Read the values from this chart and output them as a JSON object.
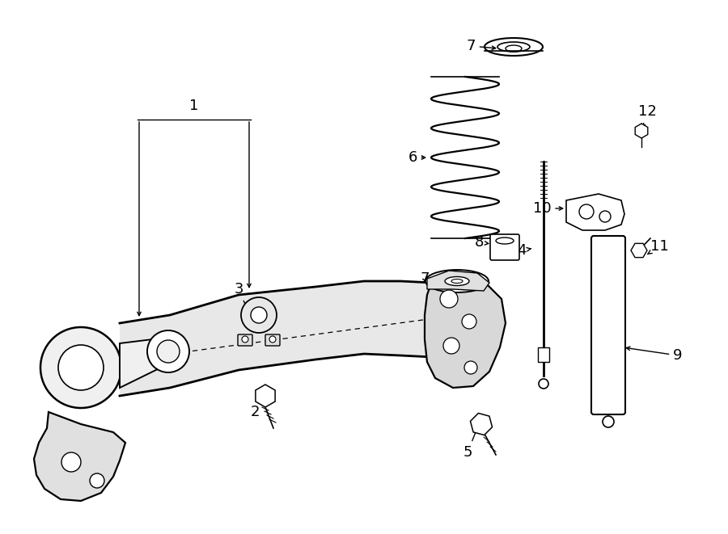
{
  "title": "",
  "bg_color": "#ffffff",
  "line_color": "#000000",
  "fig_width": 9.0,
  "fig_height": 6.61,
  "dpi": 100
}
